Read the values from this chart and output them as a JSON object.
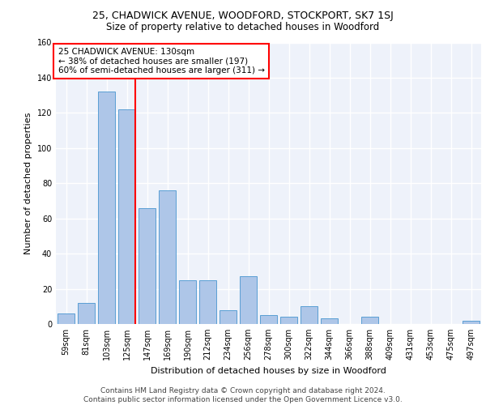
{
  "title1": "25, CHADWICK AVENUE, WOODFORD, STOCKPORT, SK7 1SJ",
  "title2": "Size of property relative to detached houses in Woodford",
  "xlabel": "Distribution of detached houses by size in Woodford",
  "ylabel": "Number of detached properties",
  "footnote": "Contains HM Land Registry data © Crown copyright and database right 2024.\nContains public sector information licensed under the Open Government Licence v3.0.",
  "bar_labels": [
    "59sqm",
    "81sqm",
    "103sqm",
    "125sqm",
    "147sqm",
    "169sqm",
    "190sqm",
    "212sqm",
    "234sqm",
    "256sqm",
    "278sqm",
    "300sqm",
    "322sqm",
    "344sqm",
    "366sqm",
    "388sqm",
    "409sqm",
    "431sqm",
    "453sqm",
    "475sqm",
    "497sqm"
  ],
  "bar_values": [
    6,
    12,
    132,
    122,
    66,
    76,
    25,
    25,
    8,
    27,
    5,
    4,
    10,
    3,
    0,
    4,
    0,
    0,
    0,
    0,
    2
  ],
  "bar_color": "#aec6e8",
  "bar_edgecolor": "#5a9fd4",
  "red_line_bin_index": 3,
  "annotation_text": "25 CHADWICK AVENUE: 130sqm\n← 38% of detached houses are smaller (197)\n60% of semi-detached houses are larger (311) →",
  "annotation_box_color": "white",
  "annotation_box_edgecolor": "red",
  "red_line_color": "red",
  "ylim": [
    0,
    160
  ],
  "yticks": [
    0,
    20,
    40,
    60,
    80,
    100,
    120,
    140,
    160
  ],
  "background_color": "#eef2fa",
  "grid_color": "white",
  "title1_fontsize": 9,
  "title2_fontsize": 8.5,
  "xlabel_fontsize": 8,
  "ylabel_fontsize": 8,
  "footnote_fontsize": 6.5,
  "tick_fontsize": 7,
  "annotation_fontsize": 7.5
}
